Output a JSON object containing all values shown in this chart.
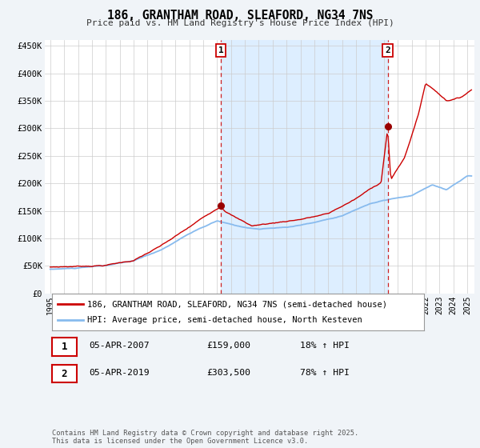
{
  "title": "186, GRANTHAM ROAD, SLEAFORD, NG34 7NS",
  "subtitle": "Price paid vs. HM Land Registry's House Price Index (HPI)",
  "background_color": "#f0f4f8",
  "plot_bg_color": "#ffffff",
  "ylabel_ticks": [
    "£0",
    "£50K",
    "£100K",
    "£150K",
    "£200K",
    "£250K",
    "£300K",
    "£350K",
    "£400K",
    "£450K"
  ],
  "ytick_values": [
    0,
    50000,
    100000,
    150000,
    200000,
    250000,
    300000,
    350000,
    400000,
    450000
  ],
  "ylim": [
    0,
    460000
  ],
  "xlim_start": 1994.6,
  "xlim_end": 2025.5,
  "xtick_years": [
    1995,
    1996,
    1997,
    1998,
    1999,
    2000,
    2001,
    2002,
    2003,
    2004,
    2005,
    2006,
    2007,
    2008,
    2009,
    2010,
    2011,
    2012,
    2013,
    2014,
    2015,
    2016,
    2017,
    2018,
    2019,
    2020,
    2021,
    2022,
    2023,
    2024,
    2025
  ],
  "red_line_color": "#cc0000",
  "blue_line_color": "#88bbee",
  "span_color": "#ddeeff",
  "annotation_line_color": "#cc2222",
  "legend_label_red": "186, GRANTHAM ROAD, SLEAFORD, NG34 7NS (semi-detached house)",
  "legend_label_blue": "HPI: Average price, semi-detached house, North Kesteven",
  "sale1_x": 2007.27,
  "sale1_y": 159000,
  "sale1_label": "1",
  "sale2_x": 2019.27,
  "sale2_y": 303500,
  "sale2_label": "2",
  "annotation1_date": "05-APR-2007",
  "annotation1_price": "£159,000",
  "annotation1_hpi": "18% ↑ HPI",
  "annotation2_date": "05-APR-2019",
  "annotation2_price": "£303,500",
  "annotation2_hpi": "78% ↑ HPI",
  "footer": "Contains HM Land Registry data © Crown copyright and database right 2025.\nThis data is licensed under the Open Government Licence v3.0."
}
